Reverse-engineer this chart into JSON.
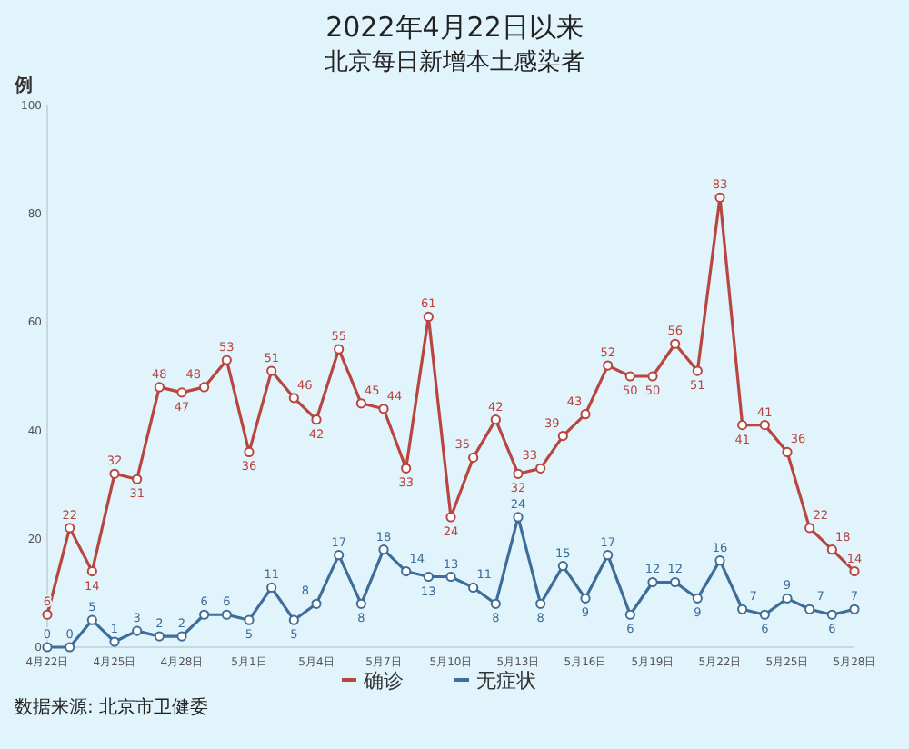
{
  "chart_data": {
    "type": "line",
    "title": "2022年4月22日以来",
    "subtitle": "北京每日新增本土感染者",
    "ylabel": "例",
    "categories": [
      "4月22日",
      null,
      null,
      "4月25日",
      null,
      null,
      "4月28日",
      null,
      null,
      "5月1日",
      null,
      null,
      "5月4日",
      null,
      null,
      "5月7日",
      null,
      null,
      "5月10日",
      null,
      null,
      "5月13日",
      null,
      null,
      "5月16日",
      null,
      null,
      "5月19日",
      null,
      null,
      "5月22日",
      null,
      null,
      "5月25日",
      null,
      null,
      "5月28日"
    ],
    "series": [
      {
        "name": "确诊",
        "color": "#b8453f",
        "values": [
          6,
          22,
          14,
          32,
          31,
          48,
          47,
          48,
          53,
          36,
          51,
          46,
          42,
          55,
          45,
          44,
          33,
          61,
          24,
          35,
          42,
          32,
          33,
          39,
          43,
          52,
          50,
          50,
          56,
          51,
          83,
          41,
          41,
          36,
          22,
          18,
          14
        ]
      },
      {
        "name": "无症状",
        "color": "#3f6d99",
        "values": [
          0,
          0,
          5,
          1,
          3,
          2,
          2,
          6,
          6,
          5,
          11,
          5,
          8,
          17,
          8,
          18,
          14,
          13,
          13,
          11,
          8,
          24,
          8,
          15,
          9,
          17,
          6,
          12,
          12,
          9,
          16,
          7,
          6,
          9,
          7,
          6,
          7
        ]
      }
    ],
    "ylim": [
      0,
      100
    ],
    "yticks": [
      0,
      20,
      40,
      60,
      80,
      100
    ],
    "marker": "circle",
    "data_labels": true,
    "legend": "bottom",
    "annotations": [
      "数据来源: 北京市卫健委"
    ]
  }
}
